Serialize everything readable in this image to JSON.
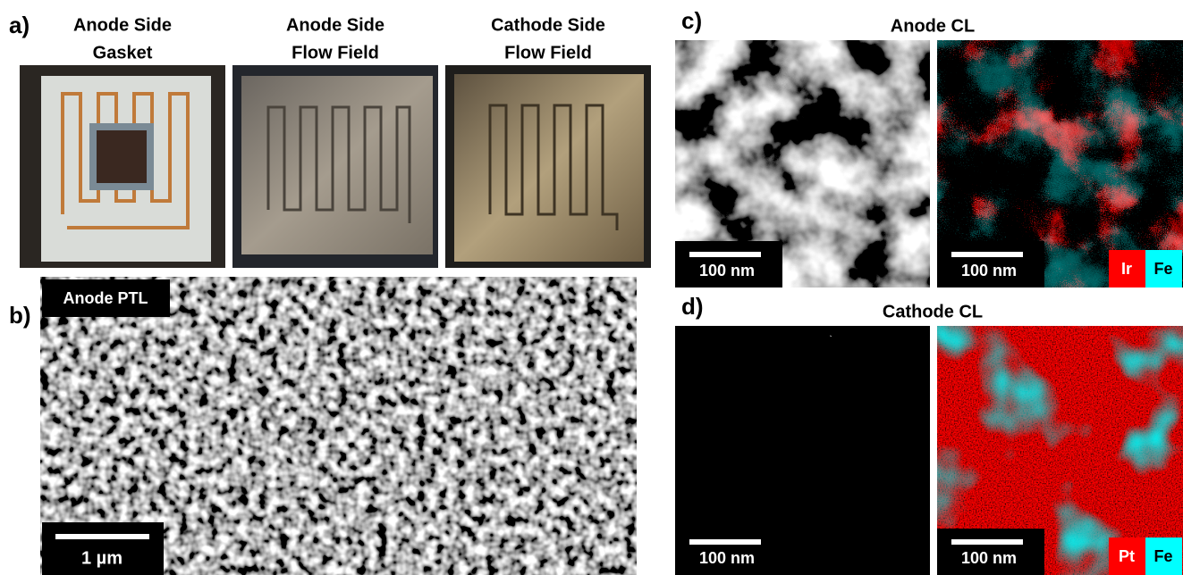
{
  "panel_a": {
    "label": "a)",
    "photos": [
      {
        "title": [
          "Anode Side",
          "Gasket"
        ]
      },
      {
        "title": [
          "Anode Side",
          "Flow Field"
        ]
      },
      {
        "title": [
          "Cathode Side",
          "Flow Field"
        ]
      }
    ]
  },
  "panel_b": {
    "label": "b)",
    "image_label": "Anode PTL",
    "scale_bar": "1 µm"
  },
  "panel_c": {
    "label": "c)",
    "title": "Anode CL",
    "images": [
      {
        "scale_bar": "100 nm"
      },
      {
        "scale_bar": "100 nm",
        "legend": [
          "Ir",
          "Fe"
        ]
      }
    ]
  },
  "panel_d": {
    "label": "d)",
    "title": "Cathode CL",
    "images": [
      {
        "scale_bar": "100 nm"
      },
      {
        "scale_bar": "100 nm",
        "legend": [
          "Pt",
          "Fe"
        ]
      }
    ]
  }
}
